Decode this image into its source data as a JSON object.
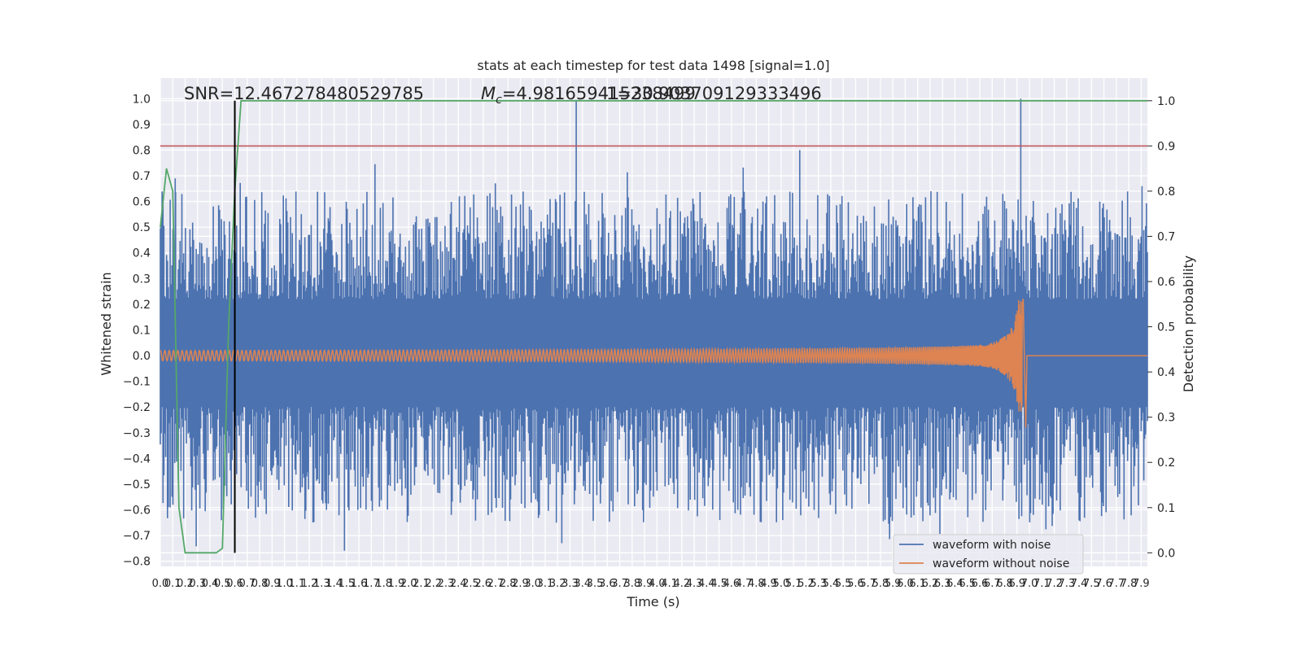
{
  "chart_data": {
    "type": "line",
    "title": "stats at each timestep for test data 1498 [signal=1.0]",
    "xlabel": "Time (s)",
    "ylabel": "Whitened strain",
    "y2label": "Detection probability",
    "xlim": [
      0.0,
      7.95
    ],
    "ylim": [
      -0.82,
      1.08
    ],
    "y2lim": [
      -0.03,
      1.05
    ],
    "x_ticks": [
      "0.0",
      "0.1",
      "0.2",
      "0.3",
      "0.4",
      "0.5",
      "0.6",
      "0.7",
      "0.8",
      "0.9",
      "1.0",
      "1.1",
      "1.2",
      "1.3",
      "1.4",
      "1.5",
      "1.6",
      "1.7",
      "1.8",
      "1.9",
      "2.0",
      "2.1",
      "2.2",
      "2.3",
      "2.4",
      "2.5",
      "2.6",
      "2.7",
      "2.8",
      "2.9",
      "3.0",
      "3.1",
      "3.2",
      "3.3",
      "3.4",
      "3.5",
      "3.6",
      "3.7",
      "3.8",
      "3.9",
      "4.0",
      "4.1",
      "4.2",
      "4.3",
      "4.4",
      "4.5",
      "4.6",
      "4.7",
      "4.8",
      "4.9",
      "5.0",
      "5.1",
      "5.2",
      "5.3",
      "5.4",
      "5.5",
      "5.6",
      "5.7",
      "5.8",
      "5.9",
      "6.0",
      "6.1",
      "6.2",
      "6.3",
      "6.4",
      "6.5",
      "6.6",
      "6.7",
      "6.8",
      "6.9",
      "7.0",
      "7.1",
      "7.2",
      "7.3",
      "7.4",
      "7.5",
      "7.6",
      "7.7",
      "7.8",
      "7.9"
    ],
    "y_ticks": [
      "−0.8",
      "−0.7",
      "−0.6",
      "−0.5",
      "−0.4",
      "−0.3",
      "−0.2",
      "−0.1",
      "0.0",
      "0.1",
      "0.2",
      "0.3",
      "0.4",
      "0.5",
      "0.6",
      "0.7",
      "0.8",
      "0.9",
      "1.0"
    ],
    "y2_ticks": [
      "0.0",
      "0.1",
      "0.2",
      "0.3",
      "0.4",
      "0.5",
      "0.6",
      "0.7",
      "0.8",
      "0.9",
      "1.0"
    ],
    "grid": true,
    "legend_position": "lower-right",
    "series": [
      {
        "name": "waveform with noise",
        "color": "#4c72b0",
        "axis": "left",
        "envelope_peak_positive": 1.0,
        "envelope_peak_negative": -0.75
      },
      {
        "name": "waveform without noise",
        "color": "#dd8452",
        "axis": "left",
        "merger_time": 6.95,
        "peak_amplitude": 0.2,
        "early_amplitude": 0.02
      }
    ],
    "probability_series": {
      "color": "#55a868",
      "axis": "right",
      "x": [
        0.0,
        0.05,
        0.1,
        0.15,
        0.2,
        0.25,
        0.3,
        0.35,
        0.4,
        0.45,
        0.5,
        0.55,
        0.6,
        0.65,
        0.7,
        7.95
      ],
      "y": [
        0.72,
        0.85,
        0.8,
        0.1,
        0.0,
        0.0,
        0.0,
        0.0,
        0.0,
        0.0,
        0.01,
        0.5,
        0.8,
        1.0,
        1.0,
        1.0
      ]
    },
    "threshold_line": {
      "axis": "right",
      "value": 0.9,
      "color": "#c44e52"
    },
    "marker_line": {
      "x": 0.6,
      "color": "#000000"
    },
    "annotations": {
      "snr": "SNR=12.467278480529785",
      "mc_symbol": "M",
      "mc_sub": "c",
      "mc_value": "=4.981659415238499",
      "extra": "1=30.903709129333496"
    }
  }
}
